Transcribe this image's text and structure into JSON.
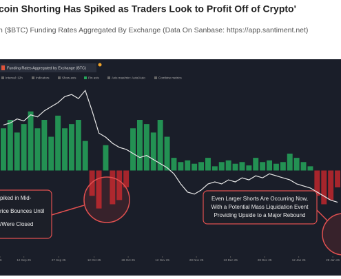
{
  "header": {
    "title": "coin Shorting Has Spiked as Traders Look to Profit Off of Crypto'",
    "subtitle": "n ($BTC) Funding Rates Aggregated By Exchange (Data On Sanbase: https://app.santiment.net)"
  },
  "widget": {
    "title": "Funding Rates Aggregated by Exchange (BTC)",
    "toolbar": [
      "Interval: 12h",
      "Indicators",
      "Show axis",
      "Pin axis",
      "Axis max/min: Auto/Auto",
      "Combine metrics"
    ]
  },
  "chart_data": {
    "type": "bar",
    "xlim": [
      0,
      50
    ],
    "xticks": [
      {
        "value": 0,
        "label": "26"
      },
      {
        "value": 3.5,
        "label": "12 Sep 25"
      },
      {
        "value": 8.6,
        "label": "27 Sep 25"
      },
      {
        "value": 13.8,
        "label": "12 Oct 25"
      },
      {
        "value": 18.8,
        "label": "28 Oct 25"
      },
      {
        "value": 23.8,
        "label": "12 Nov 25"
      },
      {
        "value": 28.8,
        "label": "28 Nov 25"
      },
      {
        "value": 33.8,
        "label": "13 Dec 25"
      },
      {
        "value": 38.8,
        "label": "28 Dec 25"
      },
      {
        "value": 43.8,
        "label": "12 Jan 26"
      },
      {
        "value": 48.8,
        "label": "28 Jan 26"
      }
    ],
    "ylim": [
      -1,
      1
    ],
    "y2lim": [
      0,
      100
    ],
    "series": [
      {
        "name": "Funding Rates",
        "color": "#26a65b",
        "negative_color": "#c0272d",
        "values": [
          0.5,
          0.6,
          0.45,
          0.55,
          0.7,
          0.5,
          0.6,
          0.4,
          0.65,
          0.5,
          0.55,
          0.6,
          0.35,
          -0.3,
          -0.45,
          0.3,
          -0.4,
          -0.35,
          -0.2,
          0.5,
          0.6,
          0.55,
          0.45,
          0.6,
          0.4,
          0.15,
          0.1,
          0.12,
          0.08,
          0.1,
          0.15,
          0.05,
          0.1,
          0.12,
          0.08,
          0.1,
          0.06,
          0.15,
          0.1,
          0.12,
          0.08,
          0.1,
          0.2,
          0.15,
          0.1,
          0.05,
          -0.3,
          -0.4,
          -0.35,
          -0.2
        ]
      },
      {
        "name": "Price",
        "color": "#e8e8e8",
        "axis": "y2",
        "values": [
          69,
          70,
          72,
          71,
          74,
          73,
          76,
          78,
          80,
          83,
          84,
          82,
          86,
          76,
          65,
          63,
          60,
          58,
          57,
          55,
          53,
          54,
          52,
          50,
          48,
          45,
          40,
          36,
          35,
          37,
          40,
          41,
          40,
          42,
          41,
          43,
          42,
          44,
          43,
          45,
          44,
          43,
          42,
          40,
          39,
          38,
          36,
          34,
          32,
          31
        ]
      }
    ],
    "annotations": [
      [
        "piked in Mid-",
        "rice Bounces Until",
        "/Were Closed"
      ],
      [
        "Even Larger Shorts Are Occurring Now,",
        "With a Potential Mass Liquidation Event",
        "Providing Upside to a Major Rebound"
      ]
    ]
  }
}
